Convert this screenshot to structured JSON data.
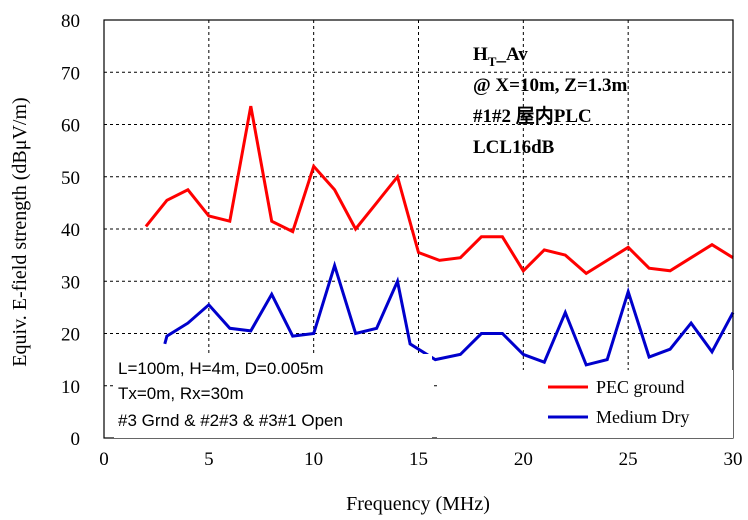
{
  "chart_data": {
    "type": "line",
    "title": "",
    "xlabel": "Frequency (MHz)",
    "ylabel": "Equiv. E-field strength (dBμV/m)",
    "xlim": [
      0,
      30
    ],
    "ylim": [
      0,
      80
    ],
    "xticks": [
      0,
      5,
      10,
      15,
      20,
      25,
      30
    ],
    "yticks": [
      0,
      10,
      20,
      30,
      40,
      50,
      60,
      70,
      80
    ],
    "grid": true,
    "legend_position": "bottom-right",
    "annotations": {
      "label_main": "H",
      "label_sub": "T",
      "label_suffix": "_Av",
      "line2": "@ X=10m, Z=1.3m",
      "line3": "#1#2 屋内PLC",
      "line4": "LCL16dB"
    },
    "parameters": [
      "L=100m, H=4m, D=0.005m",
      "Tx=0m, Rx=30m",
      "#3 Grnd & #2#3 & #3#1 Open"
    ],
    "series": [
      {
        "name": "PEC ground",
        "color": "#ff0000",
        "x": [
          2,
          3,
          4,
          5,
          6,
          7,
          8,
          9,
          10,
          11,
          12,
          13,
          14,
          15,
          16,
          17,
          18,
          19,
          20,
          21,
          22,
          23,
          24,
          25,
          26,
          27,
          28,
          29,
          30
        ],
        "y": [
          40.5,
          45.5,
          47.5,
          42.5,
          41.5,
          63.5,
          41.5,
          39.5,
          52,
          47.5,
          40,
          45,
          50,
          35.5,
          34,
          34.5,
          38.5,
          38.5,
          32,
          36,
          35,
          31.5,
          34,
          36.5,
          32.5,
          32,
          34.5,
          37,
          34.5
        ]
      },
      {
        "name": "Medium Dry",
        "color": "#0000cc",
        "x": [
          2.9,
          3,
          4,
          5,
          6,
          7,
          8,
          9,
          10,
          11,
          12,
          13,
          14,
          14.6,
          15.8,
          17,
          18,
          19,
          20,
          21,
          22,
          23,
          24,
          25,
          26,
          27,
          28,
          29,
          30
        ],
        "y": [
          18,
          19.5,
          22,
          25.5,
          21,
          20.5,
          27.5,
          19.5,
          20,
          33,
          20,
          21,
          30,
          18,
          15,
          16,
          20,
          20,
          16,
          14.5,
          24,
          14,
          15,
          28,
          15.5,
          17,
          22,
          16.5,
          24
        ]
      }
    ]
  }
}
